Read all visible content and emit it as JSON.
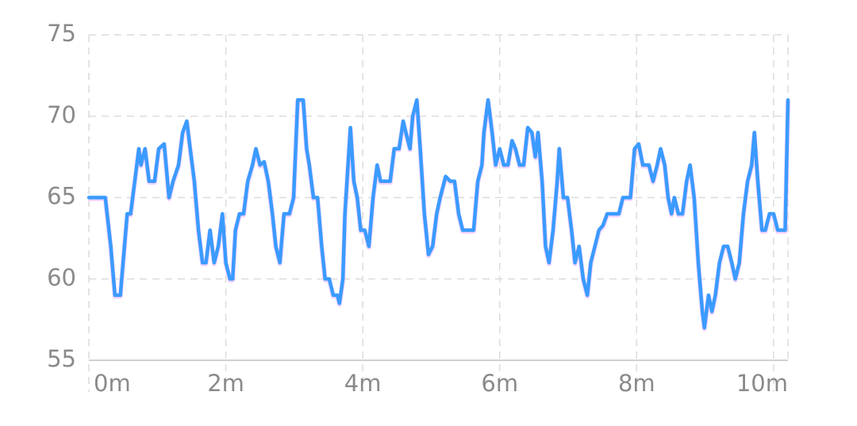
{
  "chart_data": {
    "type": "line",
    "color": "#3a9bff",
    "grid": true,
    "x": [
      0,
      0.24,
      0.32,
      0.38,
      0.46,
      0.5,
      0.56,
      0.61,
      0.67,
      0.73,
      0.76,
      0.82,
      0.88,
      0.96,
      1.02,
      1.1,
      1.17,
      1.23,
      1.31,
      1.37,
      1.43,
      1.48,
      1.54,
      1.6,
      1.66,
      1.71,
      1.77,
      1.83,
      1.89,
      1.95,
      2.0,
      2.06,
      2.1,
      2.14,
      2.2,
      2.26,
      2.32,
      2.39,
      2.44,
      2.5,
      2.56,
      2.62,
      2.68,
      2.73,
      2.79,
      2.85,
      2.93,
      2.99,
      3.05,
      3.13,
      3.18,
      3.22,
      3.28,
      3.34,
      3.4,
      3.45,
      3.51,
      3.57,
      3.63,
      3.66,
      3.71,
      3.74,
      3.8,
      3.82,
      3.87,
      3.92,
      3.97,
      4.03,
      4.09,
      4.15,
      4.21,
      4.26,
      4.35,
      4.4,
      4.46,
      4.53,
      4.59,
      4.63,
      4.69,
      4.73,
      4.79,
      4.84,
      4.9,
      4.96,
      5.02,
      5.08,
      5.13,
      5.21,
      5.28,
      5.34,
      5.4,
      5.46,
      5.54,
      5.62,
      5.68,
      5.74,
      5.77,
      5.83,
      5.89,
      5.94,
      6.0,
      6.06,
      6.12,
      6.18,
      6.23,
      6.29,
      6.35,
      6.41,
      6.47,
      6.52,
      6.56,
      6.62,
      6.67,
      6.72,
      6.78,
      6.84,
      6.87,
      6.93,
      6.99,
      7.05,
      7.1,
      7.16,
      7.22,
      7.28,
      7.33,
      7.39,
      7.45,
      7.51,
      7.57,
      7.68,
      7.74,
      7.8,
      7.86,
      7.91,
      7.97,
      8.03,
      8.09,
      8.18,
      8.24,
      8.3,
      8.35,
      8.41,
      8.46,
      8.51,
      8.55,
      8.61,
      8.67,
      8.73,
      8.78,
      8.84,
      8.9,
      8.96,
      8.99,
      9.05,
      9.1,
      9.15,
      9.21,
      9.27,
      9.33,
      9.39,
      9.44,
      9.5,
      9.56,
      9.62,
      9.68,
      9.72,
      9.77,
      9.83,
      9.88,
      9.94,
      10.0,
      10.06,
      10.12,
      10.17,
      10.21
    ],
    "values": [
      65,
      65,
      62,
      59,
      59,
      61,
      64,
      64,
      66,
      68,
      67,
      68,
      66,
      66,
      68,
      68.3,
      65,
      66,
      67,
      69,
      69.7,
      68,
      66,
      63,
      61,
      61,
      63,
      61,
      62,
      64,
      61,
      60,
      60,
      63,
      64,
      64,
      66,
      67,
      68,
      67,
      67.2,
      66,
      64,
      62,
      61,
      64,
      64,
      65,
      71,
      71,
      68,
      67,
      65,
      65,
      62,
      60,
      60,
      59,
      59,
      58.5,
      60,
      64,
      68,
      69.3,
      66,
      65,
      63,
      63,
      62,
      65,
      67,
      66,
      66,
      66,
      68,
      68,
      69.7,
      69,
      68,
      70,
      71,
      68,
      64,
      61.5,
      62,
      64,
      65,
      66.3,
      66,
      66,
      64,
      63,
      63,
      63,
      66,
      67,
      69,
      71,
      69,
      67,
      68,
      67,
      67,
      68.5,
      68,
      67,
      67,
      69.3,
      69,
      67.5,
      69,
      66,
      62,
      61,
      63,
      66,
      68,
      65,
      65,
      63,
      61,
      62,
      60,
      59,
      61,
      62,
      63,
      63.3,
      64,
      64,
      64,
      65,
      65,
      65,
      68,
      68.3,
      67,
      67,
      66,
      67,
      68,
      67,
      65,
      64,
      65,
      64,
      64,
      66,
      67,
      65,
      61,
      58,
      57,
      59,
      58,
      59,
      61,
      62,
      62,
      61,
      60,
      61,
      64,
      66,
      67,
      69,
      66,
      63,
      63,
      64,
      64,
      63,
      63,
      63,
      71
    ],
    "xlim": [
      0,
      10.21
    ],
    "xticks": [
      {
        "value": 0,
        "label": "0m"
      },
      {
        "value": 2,
        "label": "2m"
      },
      {
        "value": 4,
        "label": "4m"
      },
      {
        "value": 6,
        "label": "6m"
      },
      {
        "value": 8,
        "label": "8m"
      },
      {
        "value": 10,
        "label": "10m"
      }
    ],
    "ylim": [
      55,
      75
    ],
    "yticks": [
      55,
      60,
      65,
      70,
      75
    ]
  }
}
